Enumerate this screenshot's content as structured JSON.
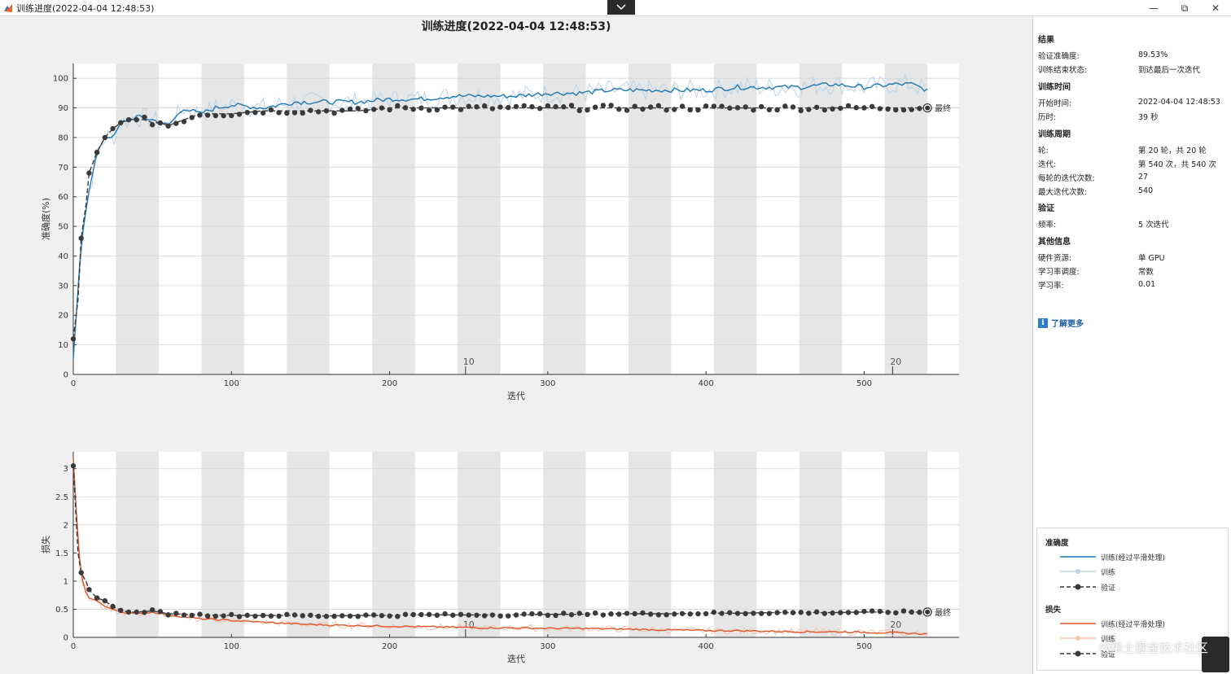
{
  "window": {
    "title": "训练进度(2022-04-04 12:48:53)",
    "collapse_icon": "chevron-down-icon",
    "minimize_glyph": "—",
    "restore_glyph": "⧉",
    "close_glyph": "✕"
  },
  "main_title": "训练进度(2022-04-04 12:48:53)",
  "sidebar": {
    "sections": [
      {
        "title": "结果",
        "rows": [
          {
            "k": "验证准确度:",
            "v": "89.53%"
          },
          {
            "k": "训练结束状态:",
            "v": "到达最后一次迭代"
          }
        ]
      },
      {
        "title": "训练时间",
        "rows": [
          {
            "k": "开始时间:",
            "v": "2022-04-04 12:48:53"
          },
          {
            "k": "历时:",
            "v": "39 秒"
          }
        ]
      },
      {
        "title": "训练周期",
        "rows": [
          {
            "k": "轮:",
            "v": "第 20 轮，共 20 轮"
          },
          {
            "k": "迭代:",
            "v": "第 540 次，共 540 次"
          },
          {
            "k": "每轮的迭代次数:",
            "v": "27"
          },
          {
            "k": "最大迭代次数:",
            "v": "540"
          }
        ]
      },
      {
        "title": "验证",
        "rows": [
          {
            "k": "频率:",
            "v": "5 次迭代"
          }
        ]
      },
      {
        "title": "其他信息",
        "rows": [
          {
            "k": "硬件资源:",
            "v": "单 GPU"
          },
          {
            "k": "学习率调度:",
            "v": "常数"
          },
          {
            "k": "学习率:",
            "v": "0.01"
          }
        ]
      }
    ],
    "learn_more": "了解更多",
    "legend": {
      "accuracy_title": "准确度",
      "accuracy_items": [
        "训练(经过平滑处理)",
        "训练",
        "验证"
      ],
      "loss_title": "损失",
      "loss_items": [
        "训练(经过平滑处理)",
        "训练",
        "验证"
      ]
    }
  },
  "watermark": "@稀土掘金技术社区",
  "colors": {
    "acc_smoothed": "#1f77b4",
    "acc_raw": "#b9d3e8",
    "loss_smoothed": "#e0562a",
    "loss_raw": "#f3c2ad",
    "validation": "#3a3a3a",
    "epoch_band": "#e6e6e6"
  },
  "chart_data": [
    {
      "type": "line",
      "ylabel": "准确度(%)",
      "xlabel": "迭代",
      "xlim": [
        0,
        560
      ],
      "ylim": [
        0,
        105
      ],
      "x_ticks": [
        0,
        100,
        200,
        300,
        400,
        500
      ],
      "y_ticks": [
        0,
        10,
        20,
        30,
        40,
        50,
        60,
        70,
        80,
        90,
        100
      ],
      "epoch_labels": [
        {
          "epoch": "10",
          "x": 248
        },
        {
          "epoch": "20",
          "x": 518
        }
      ],
      "epochs": 20,
      "iterations_per_epoch": 27,
      "final_label": "最终",
      "final_value": 90,
      "series": [
        {
          "name": "训练(经过平滑处理)",
          "x": [
            0,
            5,
            10,
            15,
            20,
            25,
            30,
            35,
            40,
            50,
            60,
            70,
            80,
            90,
            100,
            120,
            140,
            160,
            180,
            200,
            220,
            240,
            260,
            280,
            300,
            320,
            340,
            360,
            380,
            400,
            420,
            440,
            460,
            480,
            500,
            520,
            530,
            540
          ],
          "y": [
            5,
            45,
            62,
            75,
            80,
            80,
            85,
            86,
            87,
            86,
            84,
            90,
            88,
            90,
            91,
            90,
            92,
            92,
            92,
            93,
            93,
            94,
            94,
            94,
            95,
            95,
            96,
            96,
            96,
            96,
            97,
            97,
            97,
            98,
            97,
            98,
            98,
            96
          ]
        },
        {
          "name": "验证",
          "x": [
            0,
            3,
            5,
            8,
            10,
            15,
            20,
            25,
            30,
            35,
            40,
            45,
            50,
            55,
            60,
            70,
            80,
            90,
            100,
            120,
            140,
            160,
            180,
            200,
            220,
            240,
            260,
            280,
            300,
            320,
            340,
            360,
            380,
            400,
            420,
            440,
            460,
            480,
            500,
            520,
            540
          ],
          "y": [
            12,
            25,
            46,
            57,
            68,
            75,
            80,
            83,
            85,
            86,
            86,
            86,
            85,
            85,
            84,
            86,
            88,
            88,
            88,
            89,
            89,
            89,
            89,
            90,
            90,
            90,
            90,
            90,
            90,
            90,
            90,
            90,
            90,
            90,
            90,
            90,
            90,
            90,
            90,
            90,
            90
          ]
        }
      ]
    },
    {
      "type": "line",
      "ylabel": "损失",
      "xlabel": "迭代",
      "xlim": [
        0,
        560
      ],
      "ylim": [
        0,
        3.3
      ],
      "x_ticks": [
        0,
        100,
        200,
        300,
        400,
        500
      ],
      "y_ticks": [
        0,
        0.5,
        1,
        1.5,
        2,
        2.5,
        3
      ],
      "epoch_labels": [
        {
          "epoch": "10",
          "x": 248
        },
        {
          "epoch": "20",
          "x": 518
        }
      ],
      "epochs": 20,
      "iterations_per_epoch": 27,
      "final_label": "最终",
      "final_value": 0.45,
      "series": [
        {
          "name": "训练(经过平滑处理)",
          "x": [
            0,
            2,
            4,
            6,
            8,
            10,
            15,
            20,
            25,
            30,
            40,
            50,
            60,
            80,
            100,
            120,
            140,
            160,
            180,
            200,
            220,
            240,
            260,
            280,
            300,
            320,
            340,
            360,
            380,
            400,
            420,
            440,
            460,
            480,
            500,
            520,
            540
          ],
          "y": [
            3.2,
            2.2,
            1.4,
            1.0,
            0.8,
            0.7,
            0.65,
            0.55,
            0.5,
            0.45,
            0.42,
            0.45,
            0.4,
            0.33,
            0.3,
            0.27,
            0.24,
            0.22,
            0.21,
            0.2,
            0.19,
            0.18,
            0.17,
            0.17,
            0.16,
            0.16,
            0.15,
            0.14,
            0.13,
            0.12,
            0.12,
            0.11,
            0.1,
            0.1,
            0.09,
            0.08,
            0.06
          ]
        },
        {
          "name": "验证",
          "x": [
            0,
            3,
            5,
            8,
            10,
            15,
            20,
            25,
            30,
            35,
            40,
            50,
            60,
            80,
            100,
            120,
            140,
            160,
            180,
            200,
            220,
            240,
            260,
            280,
            300,
            320,
            340,
            360,
            380,
            400,
            420,
            440,
            460,
            480,
            500,
            520,
            540
          ],
          "y": [
            3.05,
            1.5,
            1.15,
            1.0,
            0.85,
            0.7,
            0.65,
            0.55,
            0.48,
            0.45,
            0.45,
            0.47,
            0.42,
            0.4,
            0.39,
            0.39,
            0.39,
            0.38,
            0.39,
            0.39,
            0.4,
            0.4,
            0.4,
            0.4,
            0.41,
            0.41,
            0.42,
            0.42,
            0.42,
            0.43,
            0.43,
            0.44,
            0.44,
            0.44,
            0.45,
            0.45,
            0.45
          ]
        }
      ]
    }
  ]
}
